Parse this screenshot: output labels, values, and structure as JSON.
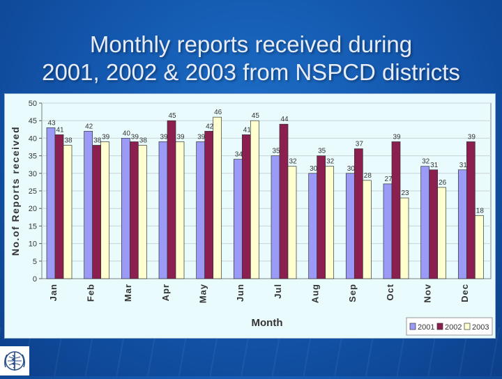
{
  "slide": {
    "title_line1": "Monthly reports received during",
    "title_line2": "2001, 2002 & 2003 from NSPCD districts",
    "background_color": "#1459b0",
    "logo_icon": "who-emblem-icon"
  },
  "chart_data": {
    "type": "bar",
    "title": "",
    "xlabel": "Month",
    "ylabel": "No.of Reports received",
    "ylim": [
      0,
      50
    ],
    "ytick_step": 5,
    "categories": [
      "Jan",
      "Feb",
      "Mar",
      "Apr",
      "May",
      "Jun",
      "Jul",
      "Aug",
      "Sep",
      "Oct",
      "Nov",
      "Dec"
    ],
    "series": [
      {
        "name": "2001",
        "color": "#9b9bf7",
        "values": [
          43,
          42,
          40,
          39,
          39,
          34,
          35,
          30,
          30,
          27,
          32,
          31
        ]
      },
      {
        "name": "2002",
        "color": "#8b1f4f",
        "values": [
          41,
          38,
          39,
          45,
          42,
          41,
          44,
          35,
          37,
          39,
          31,
          39
        ]
      },
      {
        "name": "2003",
        "color": "#ffffd0",
        "values": [
          38,
          39,
          38,
          39,
          46,
          45,
          32,
          32,
          28,
          23,
          26,
          18
        ]
      }
    ],
    "legend_position": "bottom-right",
    "data_labels": true,
    "grid": true
  }
}
